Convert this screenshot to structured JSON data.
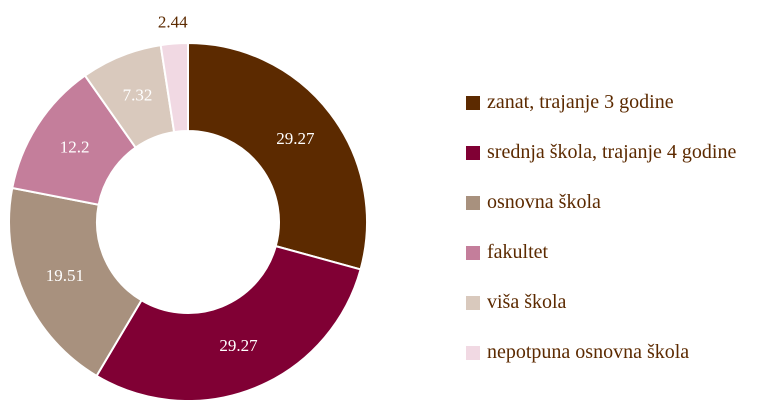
{
  "chart_data": {
    "type": "donut",
    "categories": [
      "zanat, trajanje 3 godine",
      "srednja škola, trajanje 4 godine",
      "osnovna škola",
      "fakultet",
      "viša škola",
      "nepotpuna osnovna škola"
    ],
    "values": [
      29.27,
      29.27,
      19.51,
      12.2,
      7.32,
      2.44
    ],
    "colors": [
      "#5c2a00",
      "#800034",
      "#a8917e",
      "#c47e9b",
      "#d9c9bd",
      "#f1d9e3"
    ],
    "legend": "right"
  }
}
